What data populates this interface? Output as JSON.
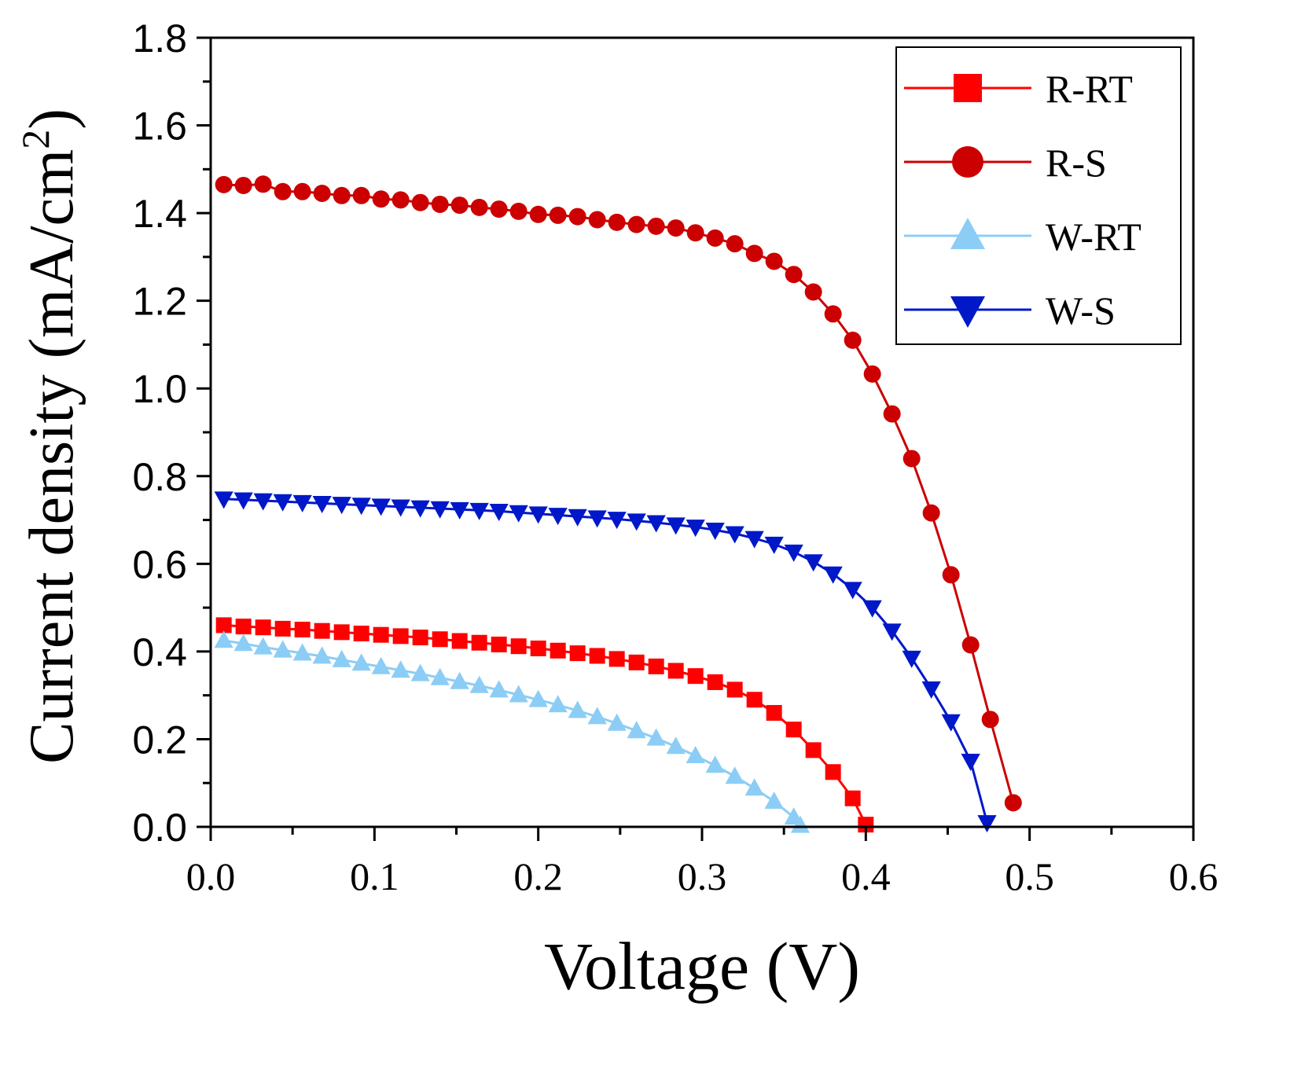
{
  "chart_data": {
    "type": "line",
    "xlabel": "Voltage (V)",
    "ylabel_main": "Current density (mA/cm",
    "ylabel_sup": "2",
    "ylabel_close": ")",
    "xlim": [
      0.0,
      0.6
    ],
    "ylim": [
      0.0,
      1.8
    ],
    "x_ticks": [
      0.0,
      0.1,
      0.2,
      0.3,
      0.4,
      0.5,
      0.6
    ],
    "x_tick_labels": [
      "0.0",
      "0.1",
      "0.2",
      "0.3",
      "0.4",
      "0.5",
      "0.6"
    ],
    "y_ticks": [
      0.0,
      0.2,
      0.4,
      0.6,
      0.8,
      1.0,
      1.2,
      1.4,
      1.6,
      1.8
    ],
    "y_tick_labels": [
      "0.0",
      "0.2",
      "0.4",
      "0.6",
      "0.8",
      "1.0",
      "1.2",
      "1.4",
      "1.6",
      "1.8"
    ],
    "grid": false,
    "legend_position": "top-right",
    "series": [
      {
        "name": "R-RT",
        "color": "#ff0000",
        "marker": "square",
        "x": [
          0.008,
          0.02,
          0.032,
          0.044,
          0.056,
          0.068,
          0.08,
          0.092,
          0.104,
          0.116,
          0.128,
          0.14,
          0.152,
          0.164,
          0.176,
          0.188,
          0.2,
          0.212,
          0.224,
          0.236,
          0.248,
          0.26,
          0.272,
          0.284,
          0.296,
          0.308,
          0.32,
          0.332,
          0.344,
          0.356,
          0.368,
          0.38,
          0.392,
          0.4
        ],
        "y": [
          0.46,
          0.457,
          0.455,
          0.452,
          0.45,
          0.447,
          0.444,
          0.441,
          0.438,
          0.435,
          0.432,
          0.428,
          0.424,
          0.42,
          0.416,
          0.412,
          0.407,
          0.402,
          0.396,
          0.39,
          0.383,
          0.375,
          0.366,
          0.356,
          0.344,
          0.33,
          0.313,
          0.29,
          0.26,
          0.222,
          0.175,
          0.125,
          0.065,
          0.005
        ]
      },
      {
        "name": "R-S",
        "color": "#cc0000",
        "marker": "circle",
        "x": [
          0.008,
          0.02,
          0.032,
          0.044,
          0.056,
          0.068,
          0.08,
          0.092,
          0.104,
          0.116,
          0.128,
          0.14,
          0.152,
          0.164,
          0.176,
          0.188,
          0.2,
          0.212,
          0.224,
          0.236,
          0.248,
          0.26,
          0.272,
          0.284,
          0.296,
          0.308,
          0.32,
          0.332,
          0.344,
          0.356,
          0.368,
          0.38,
          0.392,
          0.404,
          0.416,
          0.428,
          0.44,
          0.452,
          0.464,
          0.476,
          0.49
        ],
        "y": [
          1.465,
          1.463,
          1.466,
          1.449,
          1.449,
          1.445,
          1.44,
          1.44,
          1.432,
          1.43,
          1.424,
          1.42,
          1.418,
          1.413,
          1.409,
          1.404,
          1.397,
          1.395,
          1.392,
          1.385,
          1.379,
          1.374,
          1.37,
          1.366,
          1.355,
          1.343,
          1.33,
          1.308,
          1.29,
          1.26,
          1.22,
          1.17,
          1.11,
          1.033,
          0.942,
          0.84,
          0.716,
          0.575,
          0.415,
          0.245,
          0.055
        ]
      },
      {
        "name": "W-RT",
        "color": "#8ccdf5",
        "marker": "triangle-up",
        "x": [
          0.008,
          0.02,
          0.032,
          0.044,
          0.056,
          0.068,
          0.08,
          0.092,
          0.104,
          0.116,
          0.128,
          0.14,
          0.152,
          0.164,
          0.176,
          0.188,
          0.2,
          0.212,
          0.224,
          0.236,
          0.248,
          0.26,
          0.272,
          0.284,
          0.296,
          0.308,
          0.32,
          0.332,
          0.344,
          0.356,
          0.36
        ],
        "y": [
          0.425,
          0.418,
          0.41,
          0.403,
          0.396,
          0.389,
          0.381,
          0.373,
          0.365,
          0.357,
          0.349,
          0.34,
          0.331,
          0.322,
          0.312,
          0.301,
          0.29,
          0.278,
          0.265,
          0.251,
          0.236,
          0.219,
          0.202,
          0.183,
          0.162,
          0.14,
          0.115,
          0.088,
          0.058,
          0.022,
          0.003
        ]
      },
      {
        "name": "W-S",
        "color": "#0018c8",
        "marker": "triangle-down",
        "x": [
          0.008,
          0.02,
          0.032,
          0.044,
          0.056,
          0.068,
          0.08,
          0.092,
          0.104,
          0.116,
          0.128,
          0.14,
          0.152,
          0.164,
          0.176,
          0.188,
          0.2,
          0.212,
          0.224,
          0.236,
          0.248,
          0.26,
          0.272,
          0.284,
          0.296,
          0.308,
          0.32,
          0.332,
          0.344,
          0.356,
          0.368,
          0.38,
          0.392,
          0.404,
          0.416,
          0.428,
          0.44,
          0.452,
          0.464,
          0.474
        ],
        "y": [
          0.748,
          0.746,
          0.744,
          0.742,
          0.74,
          0.738,
          0.736,
          0.734,
          0.732,
          0.73,
          0.728,
          0.726,
          0.724,
          0.722,
          0.72,
          0.717,
          0.714,
          0.711,
          0.708,
          0.705,
          0.702,
          0.698,
          0.694,
          0.689,
          0.684,
          0.677,
          0.669,
          0.658,
          0.645,
          0.627,
          0.605,
          0.577,
          0.542,
          0.5,
          0.447,
          0.385,
          0.315,
          0.24,
          0.15,
          0.01
        ]
      }
    ]
  }
}
